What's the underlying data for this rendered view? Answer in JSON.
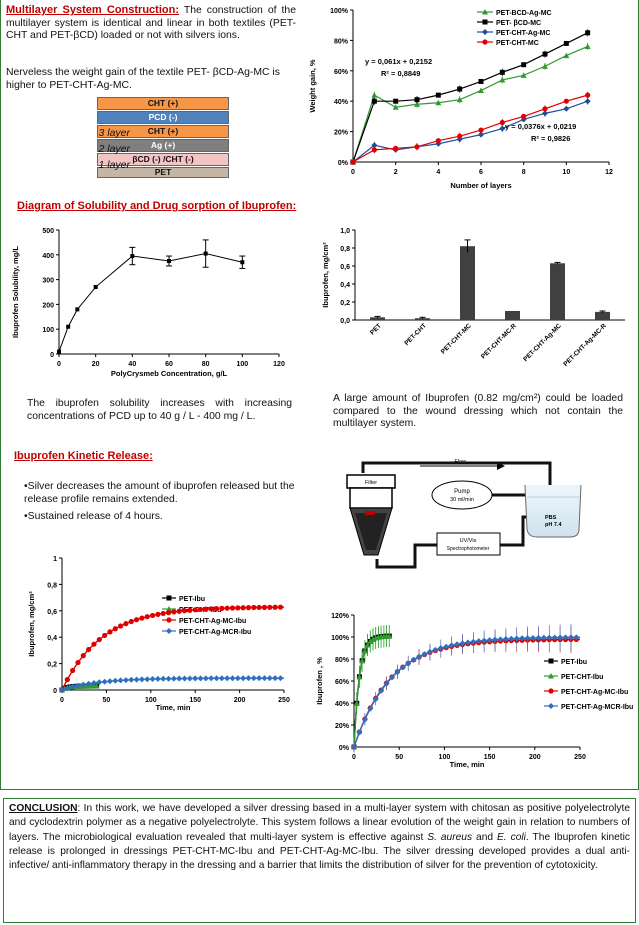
{
  "construction": {
    "heading": "Multilayer System Construction:",
    "text1": " The construction of the multilayer system is identical and linear in both textiles (PET-CHT and PET-βCD) loaded or not with silvers ions.",
    "text2": "Nerveless the weight gain of the textile PET- βCD-Ag-MC is higher to PET-CHT-Ag-MC.",
    "stack": [
      {
        "label": "CHT (+)",
        "color": "#f79646"
      },
      {
        "label": "PCD (-)",
        "color": "#4f81bd"
      },
      {
        "label": "CHT (+)",
        "color": "#f79646"
      },
      {
        "label": "Ag (+)",
        "color": "#7f7f7f"
      },
      {
        "label": "βCD (-) /CHT (-)",
        "color": "#f2c4c4"
      },
      {
        "label": "PET",
        "color": "#c4b5a5"
      }
    ],
    "layer_labels": [
      "3 layer",
      "2 layer",
      "1 layer"
    ]
  },
  "solubility": {
    "heading": "Diagram of Solubility and Drug sorption of Ibuprofen:",
    "text": "The ibuprofen solubility increases with increasing concentrations of PCD up to 40 g / L - 400 mg / L."
  },
  "sorption": {
    "text": "A large amount of Ibuprofen (0.82 mg/cm²) could be loaded compared to the wound dressing which not contain the multilayer system."
  },
  "kinetic": {
    "heading": "Ibuprofen Kinetic Release:",
    "bullet1": "•Silver decreases the amount of ibuprofen released but the release profile remains extended.",
    "bullet2": "•Sustained release of 4 hours."
  },
  "apparatus": {
    "flow": "Flow",
    "filter": "Filter",
    "pump_line1": "Pump",
    "pump_line2": "30 ml/min",
    "uv_line1": "UV/Vis",
    "uv_line2": "Spectrophotometer",
    "pbs_line1": "PBS",
    "pbs_line2": "pH 7.4"
  },
  "conclusion": {
    "label": "CONCLUSION",
    "t1": ": In this work,  we have developed a silver dressing based in a multi-layer system with chitosan as positive polyelectrolyte and cyclodextrin polymer as a negative polyelectrolyte. This system follows a linear evolution of the weight gain in relation to numbers of layers. The microbiological evaluation revealed that multi-layer system is effective against ",
    "sa": "S. aureus",
    "t2": " and ",
    "ec": "E. coli",
    "t3": ". The Ibuprofen kinetic release is prolonged in dressings PET-CHT-MC-Ibu and PET-CHT-Ag-MC-Ibu. The silver dressing developed provides a dual anti-infective/ anti-inflammatory therapy in the dressing and a barrier that limits the distribution of silver for the prevention of cytotoxicity."
  },
  "chart_data": [
    {
      "type": "line",
      "xlabel": "Number of layers",
      "ylabel": "Weight gain, %",
      "xlim": [
        0,
        12
      ],
      "ylim": [
        0,
        100
      ],
      "xticks": [
        0,
        2,
        4,
        6,
        8,
        10,
        12
      ],
      "yticks": [
        "0%",
        "20%",
        "40%",
        "60%",
        "80%",
        "100%"
      ],
      "legend": "top-right",
      "series": [
        {
          "name": "PET-BCD-Ag-MC",
          "color": "#339933",
          "marker": "triangle",
          "x": [
            0,
            1,
            2,
            3,
            4,
            5,
            6,
            7,
            8,
            9,
            10,
            11
          ],
          "y": [
            0,
            44,
            36,
            38,
            39,
            41,
            47,
            54,
            57,
            63,
            70,
            76
          ]
        },
        {
          "name": "PET- βCD-MC",
          "color": "#000000",
          "marker": "square",
          "x": [
            0,
            1,
            2,
            3,
            4,
            5,
            6,
            7,
            8,
            9,
            10,
            11
          ],
          "y": [
            0,
            40,
            40,
            41,
            44,
            48,
            53,
            59,
            64,
            71,
            78,
            85
          ]
        },
        {
          "name": "PET-CHT-Ag-MC",
          "color": "#1f4e9c",
          "marker": "diamond",
          "x": [
            0,
            1,
            2,
            3,
            4,
            5,
            6,
            7,
            8,
            9,
            10,
            11
          ],
          "y": [
            0,
            11,
            8,
            10,
            12,
            15,
            18,
            22,
            28,
            32,
            35,
            40
          ]
        },
        {
          "name": "PET-CHT-MC",
          "color": "#e00000",
          "marker": "circle",
          "x": [
            0,
            1,
            2,
            3,
            4,
            5,
            6,
            7,
            8,
            9,
            10,
            11
          ],
          "y": [
            0,
            8,
            9,
            10,
            14,
            17,
            21,
            26,
            30,
            35,
            40,
            44
          ]
        }
      ],
      "annotations": [
        "y = 0,061x + 0,2152",
        "R² = 0,8849",
        "y = 0,0376x + 0,0219",
        "R² = 0,9826"
      ]
    },
    {
      "type": "line",
      "xlabel": "PolyCrysmeb Concentration,  g/L",
      "ylabel": "Ibuprofen Solubility, mg/L",
      "xlim": [
        0,
        120
      ],
      "ylim": [
        0,
        500
      ],
      "xticks": [
        0,
        20,
        40,
        60,
        80,
        100,
        120
      ],
      "yticks": [
        0,
        100,
        200,
        300,
        400,
        500
      ],
      "series": [
        {
          "x": [
            0,
            5,
            10,
            20,
            40,
            60,
            80,
            100
          ],
          "y": [
            10,
            110,
            180,
            270,
            395,
            375,
            405,
            370
          ],
          "err": [
            0,
            0,
            0,
            0,
            35,
            20,
            55,
            25
          ]
        }
      ]
    },
    {
      "type": "bar",
      "ylabel": "Ibuprofen, mg/cm²",
      "ylim": [
        0,
        1.0
      ],
      "yticks": [
        "0,0",
        "0,2",
        "0,4",
        "0,6",
        "0,8",
        "1,0"
      ],
      "categories": [
        "PET",
        "PET-CHT",
        "PET-CHT-MC",
        "PET-CHT-MC-R",
        "PET-CHT-Ag-MC",
        "PET-CHT-Ag-MC-R"
      ],
      "values": [
        0.03,
        0.02,
        0.82,
        0.1,
        0.63,
        0.09
      ],
      "err": [
        0.01,
        0.01,
        0.07,
        0.0,
        0.01,
        0.01
      ],
      "colors": [
        "#404040",
        "#404040",
        "#404040",
        "#404040",
        "#404040",
        "#404040"
      ]
    },
    {
      "type": "line",
      "xlabel": "Time, min",
      "ylabel": "Ibuprofen, mg/cm²",
      "xlim": [
        0,
        250
      ],
      "ylim": [
        0,
        1
      ],
      "xticks": [
        0,
        50,
        100,
        150,
        200,
        250
      ],
      "yticks": [
        "0",
        "0,2",
        "0,4",
        "0,6",
        "0,8",
        "1"
      ],
      "legend": "right",
      "series": [
        {
          "name": "PET-Ibu",
          "color": "#000000",
          "model": {
            "max": 0.03,
            "tau": 6,
            "end": 40
          }
        },
        {
          "name": "PET-CHT-Ibu",
          "color": "#2e9d2e",
          "model": {
            "max": 0.03,
            "tau": 6,
            "end": 40
          }
        },
        {
          "name": "PET-CHT-Ag-MC-Ibu",
          "color": "#e00000",
          "model": {
            "max": 0.63,
            "tau": 45,
            "end": 250
          }
        },
        {
          "name": "PET-CHT-Ag-MCR-Ibu",
          "color": "#2f6fc0",
          "model": {
            "max": 0.09,
            "tau": 40,
            "end": 250
          }
        }
      ]
    },
    {
      "type": "line",
      "xlabel": "Time, min",
      "ylabel": "Ibuprofen , %",
      "xlim": [
        0,
        250
      ],
      "ylim": [
        0,
        120
      ],
      "xticks": [
        0,
        50,
        100,
        150,
        200,
        250
      ],
      "yticks": [
        "0%",
        "20%",
        "40%",
        "60%",
        "80%",
        "100%",
        "120%"
      ],
      "legend": "right",
      "series": [
        {
          "name": "PET-Ibu",
          "color": "#000000",
          "model": {
            "max": 101,
            "tau": 6,
            "end": 40
          }
        },
        {
          "name": "PET-CHT-Ibu",
          "color": "#2e9d2e",
          "model": {
            "max": 101,
            "tau": 6,
            "end": 40
          }
        },
        {
          "name": "PET-CHT-Ag-MC-Ibu",
          "color": "#e00000",
          "model": {
            "max": 98,
            "tau": 40,
            "end": 250
          }
        },
        {
          "name": "PET-CHT-Ag-MCR-Ibu",
          "color": "#2f6fc0",
          "model": {
            "max": 100,
            "tau": 42,
            "end": 250
          }
        }
      ]
    }
  ]
}
